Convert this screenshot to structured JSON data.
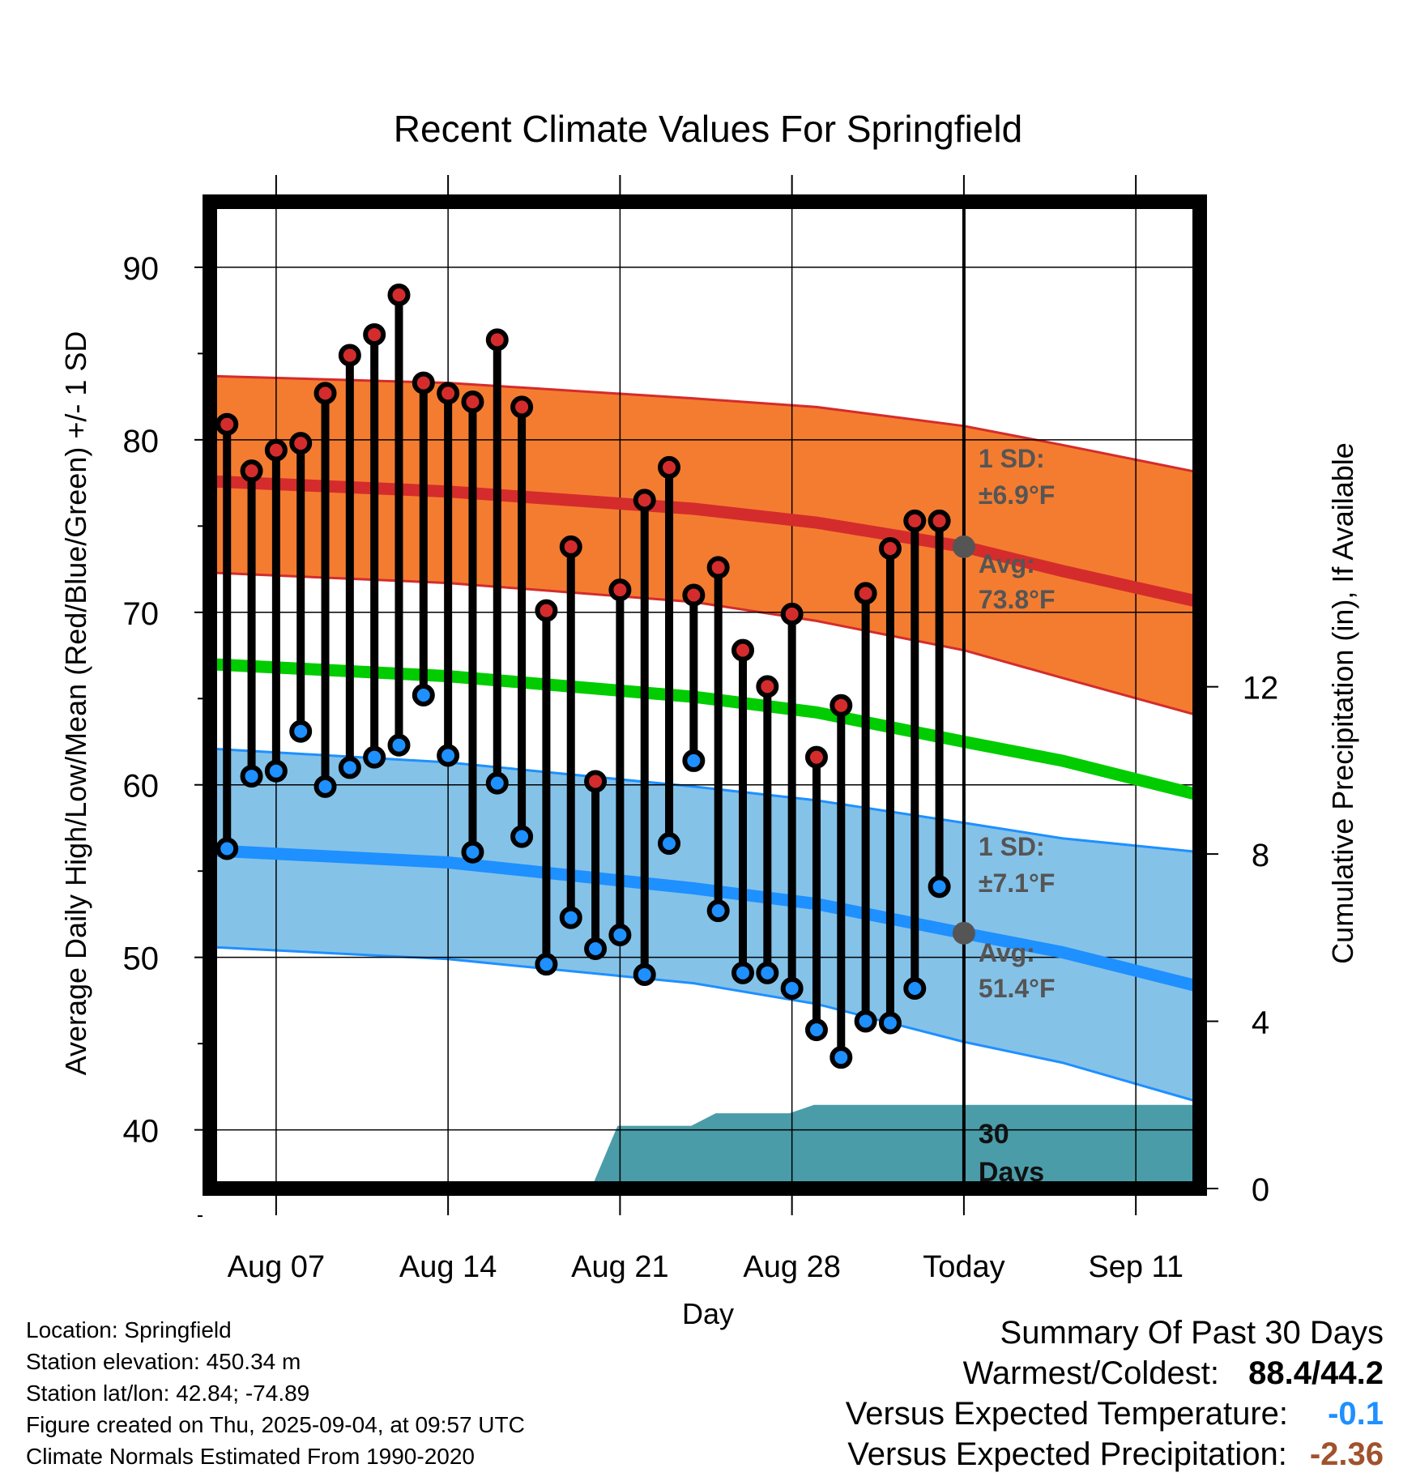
{
  "chart_data": {
    "type": "line",
    "title": "Recent Climate Values For Springfield",
    "xlabel": "Day",
    "ylabel": "Average Daily High/Low/Mean (Red/Blue/Green) +/- 1 SD",
    "y2label": "Cumulative Precipitation (in), If Available",
    "ylim": [
      36.6,
      93.8
    ],
    "y2lim": [
      0,
      23.6
    ],
    "yticks": [
      40,
      50,
      60,
      70,
      80,
      90
    ],
    "y2ticks": [
      0,
      4,
      8,
      12
    ],
    "x_tick_labels": [
      "Aug 07",
      "Aug 14",
      "Aug 21",
      "Aug 28",
      "Today",
      "Sep 11"
    ],
    "x_ticks": [
      3.0,
      10.0,
      17.0,
      24.0,
      31.0,
      38.0
    ],
    "xlim": [
      0.3,
      40.6
    ],
    "grid": true,
    "today_x": 31.0,
    "observed_x": [
      1,
      2,
      3,
      4,
      5,
      6,
      7,
      8,
      9,
      10,
      11,
      12,
      13,
      14,
      15,
      16,
      17,
      18,
      19,
      20,
      21,
      22,
      23,
      24,
      25,
      26,
      27,
      28,
      29,
      30
    ],
    "observed_high": [
      80.9,
      78.2,
      79.4,
      79.8,
      82.7,
      84.9,
      86.1,
      88.4,
      83.3,
      82.7,
      82.2,
      85.8,
      81.9,
      70.1,
      73.8,
      60.2,
      71.3,
      76.5,
      78.4,
      71.0,
      72.6,
      67.8,
      65.7,
      69.9,
      61.6,
      64.6,
      71.1,
      73.7,
      75.3,
      75.3
    ],
    "observed_low": [
      56.3,
      60.5,
      60.8,
      63.1,
      59.9,
      61.0,
      61.6,
      62.3,
      65.2,
      61.7,
      56.1,
      60.1,
      57.0,
      49.6,
      52.3,
      50.5,
      51.3,
      49.0,
      56.6,
      61.4,
      52.7,
      49.1,
      49.1,
      48.2,
      45.8,
      44.2,
      46.3,
      46.2,
      48.2,
      54.1
    ],
    "normal_x": [
      0.3,
      10.0,
      20.0,
      25.0,
      31.0,
      35.0,
      40.6
    ],
    "normal_high": [
      77.6,
      77.0,
      76.0,
      75.2,
      73.8,
      72.4,
      70.6
    ],
    "normal_high_upper": [
      83.7,
      83.3,
      82.4,
      81.9,
      80.8,
      79.7,
      78.1
    ],
    "normal_high_lower": [
      72.3,
      71.7,
      70.6,
      69.5,
      67.8,
      66.2,
      64.0
    ],
    "normal_mean": [
      67.0,
      66.3,
      65.1,
      64.2,
      62.5,
      61.4,
      59.4
    ],
    "normal_low": [
      56.2,
      55.5,
      54.0,
      53.1,
      51.4,
      50.3,
      48.3
    ],
    "normal_low_upper": [
      62.1,
      61.3,
      59.9,
      59.1,
      57.8,
      56.9,
      56.1
    ],
    "normal_low_lower": [
      50.6,
      49.9,
      48.5,
      47.3,
      45.1,
      43.9,
      41.6
    ],
    "precip_x": [
      0.3,
      12.5,
      15.9,
      16.9,
      19.9,
      20.9,
      23.9,
      24.9,
      40.6
    ],
    "precip_cumulative": [
      0.0,
      0.05,
      0.1,
      1.5,
      1.5,
      1.8,
      1.8,
      2.0,
      2.0
    ],
    "annotations": {
      "high_sd_label": "1 SD:",
      "high_sd_value": "±6.9°F",
      "high_avg_label": "Avg:",
      "high_avg_value": "73.8°F",
      "low_sd_label": "1 SD:",
      "low_sd_value": "±7.1°F",
      "low_avg_label": "Avg:",
      "low_avg_value": "51.4°F",
      "days_number": "30",
      "days_word": "Days"
    },
    "colors": {
      "high_band": "#f47c30",
      "high_line": "#d42c2c",
      "mean_line": "#00cc00",
      "low_band": "#85c2e8",
      "low_line": "#1e90ff",
      "precip": "#4a9ca8",
      "high_marker": "#d42c2c",
      "low_marker": "#1e90ff",
      "annotation": "#555555"
    }
  },
  "info": {
    "location": "Location: Springfield",
    "elevation": "Station elevation: 450.34 m",
    "latlon": "Station lat/lon: 42.84; -74.89",
    "created": "Figure created on Thu, 2025-09-04, at 09:57 UTC",
    "normals": "Climate Normals Estimated From 1990-2020"
  },
  "summary": {
    "title": "Summary Of Past 30 Days",
    "warmest_label": "Warmest/Coldest:",
    "warmest_value": "88.4/44.2",
    "temp_label": "Versus Expected Temperature:",
    "temp_value": "-0.1",
    "precip_label": "Versus Expected Precipitation:",
    "precip_value": "-2.36"
  }
}
